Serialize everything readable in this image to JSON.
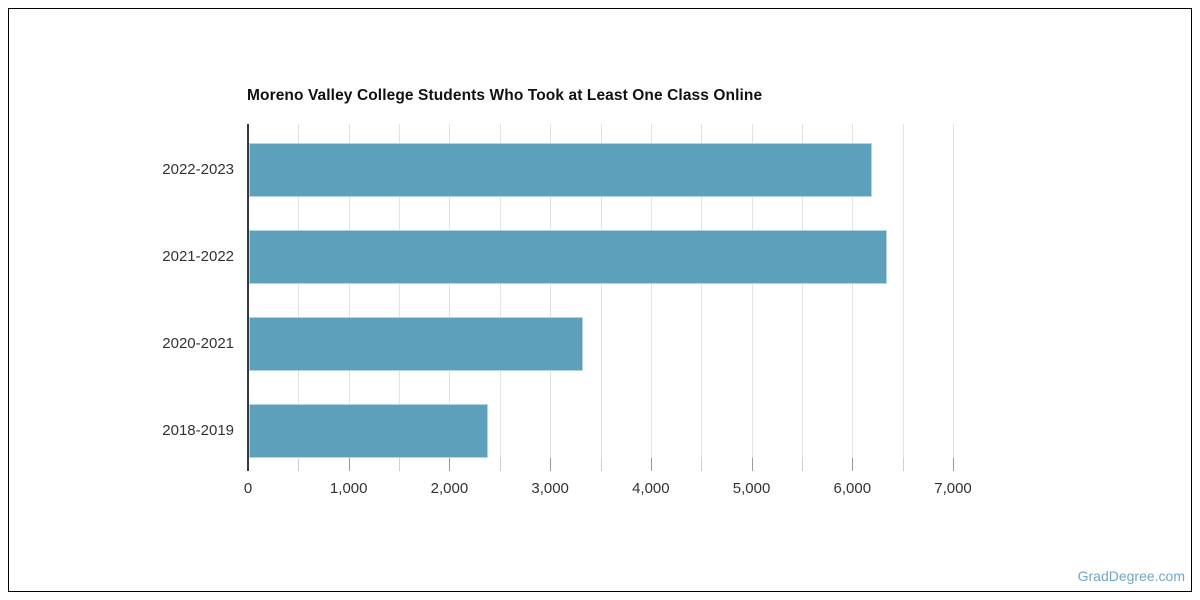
{
  "page": {
    "background": "#ffffff",
    "frame_border_color": "#000000",
    "watermark": "GradDegree.com",
    "watermark_color": "#6fa6c7"
  },
  "chart_data": {
    "type": "bar",
    "orientation": "horizontal",
    "title": "Moreno Valley College Students Who Took at Least One Class Online",
    "categories": [
      "2022-2023",
      "2021-2022",
      "2020-2021",
      "2018-2019"
    ],
    "values": [
      6200,
      6340,
      3330,
      2380
    ],
    "xlabel": "",
    "ylabel": "",
    "xlim": [
      0,
      7000
    ],
    "x_major_tick_step": 1000,
    "x_minor_tick_step": 500,
    "x_tick_labels": [
      "0",
      "1,000",
      "2,000",
      "3,000",
      "4,000",
      "5,000",
      "6,000",
      "7,000"
    ],
    "grid": true,
    "legend": false,
    "bar_color": "#5ca0bc",
    "bar_border_color": "rgba(255,255,255,0.55)",
    "gridline_color": "#e2e2e2",
    "major_tick_color": "#9a9a9a",
    "minor_tick_color": "#cfcfcf",
    "axis_line_color": "#333a40",
    "tick_label_color": "#333333",
    "category_label_color": "#333333",
    "title_color": "#111111"
  }
}
